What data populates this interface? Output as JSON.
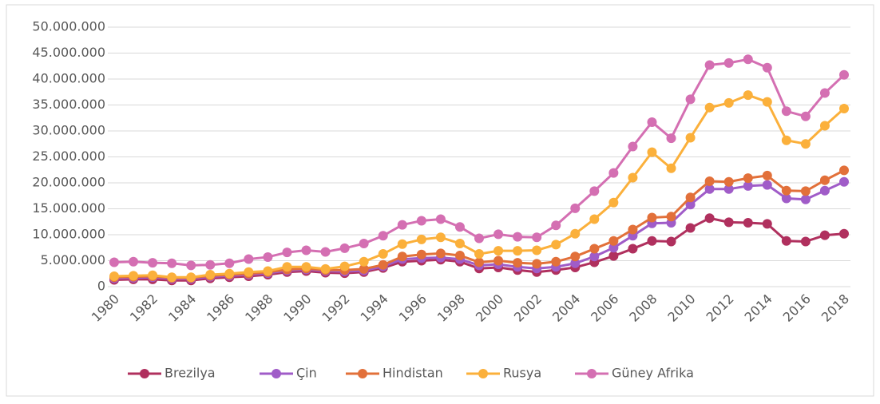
{
  "chart_data": {
    "type": "line",
    "categories": [
      "1980",
      null,
      "1982",
      null,
      "1984",
      null,
      "1986",
      null,
      "1988",
      null,
      "1990",
      null,
      "1992",
      null,
      "1994",
      null,
      "1996",
      null,
      "1998",
      null,
      "2000",
      null,
      "2002",
      null,
      "2004",
      null,
      "2006",
      null,
      "2008",
      null,
      "2010",
      null,
      "2012",
      null,
      "2014",
      null,
      "2016",
      null,
      "2018"
    ],
    "series": [
      {
        "name": "Brezilya",
        "color": "#b0305e",
        "values": [
          1300000,
          1400000,
          1400000,
          1200000,
          1200000,
          1600000,
          1800000,
          2000000,
          2300000,
          2800000,
          3000000,
          2700000,
          2600000,
          2800000,
          3600000,
          4800000,
          5000000,
          5200000,
          4800000,
          3500000,
          3700000,
          3200000,
          2800000,
          3200000,
          3700000,
          4700000,
          5900000,
          7300000,
          8800000,
          8700000,
          11300000,
          13200000,
          12400000,
          12300000,
          12100000,
          8800000,
          8700000,
          9900000,
          10200000
        ]
      },
      {
        "name": "Çin",
        "color": "#a05cc8",
        "values": [
          1600000,
          1700000,
          1800000,
          1500000,
          1500000,
          1900000,
          2100000,
          2300000,
          2600000,
          3100000,
          3300000,
          3000000,
          2900000,
          3100000,
          3900000,
          5300000,
          5500000,
          5600000,
          5300000,
          4100000,
          4300000,
          3800000,
          3500000,
          3800000,
          4500000,
          5800000,
          7500000,
          9800000,
          12200000,
          12300000,
          15800000,
          18800000,
          18800000,
          19400000,
          19600000,
          17000000,
          16800000,
          18500000,
          20200000
        ]
      },
      {
        "name": "Hindistan",
        "color": "#e2703a",
        "values": [
          1800000,
          1900000,
          2000000,
          1700000,
          1700000,
          2100000,
          2300000,
          2500000,
          2800000,
          3300000,
          3500000,
          3200000,
          3200000,
          3400000,
          4200000,
          5800000,
          6200000,
          6400000,
          6000000,
          4700000,
          5000000,
          4600000,
          4400000,
          4800000,
          5800000,
          7300000,
          8800000,
          11000000,
          13300000,
          13500000,
          17200000,
          20300000,
          20200000,
          20900000,
          21400000,
          18500000,
          18400000,
          20500000,
          22400000
        ]
      },
      {
        "name": "Rusya",
        "color": "#fbb03b",
        "values": [
          2000000,
          2100000,
          2200000,
          1800000,
          1800000,
          2300000,
          2500000,
          2800000,
          3000000,
          3800000,
          3800000,
          3400000,
          3900000,
          4800000,
          6300000,
          8200000,
          9100000,
          9500000,
          8300000,
          6300000,
          6900000,
          6900000,
          7000000,
          8100000,
          10200000,
          13000000,
          16200000,
          21000000,
          25900000,
          22800000,
          28700000,
          34500000,
          35400000,
          36900000,
          35600000,
          28200000,
          27500000,
          31000000,
          34300000
        ]
      },
      {
        "name": "Güney Afrika",
        "color": "#d46fb2",
        "values": [
          4700000,
          4800000,
          4600000,
          4500000,
          4100000,
          4200000,
          4500000,
          5300000,
          5700000,
          6600000,
          7000000,
          6700000,
          7400000,
          8300000,
          9800000,
          11900000,
          12700000,
          13000000,
          11500000,
          9300000,
          10100000,
          9600000,
          9500000,
          11800000,
          15100000,
          18400000,
          21900000,
          27000000,
          31700000,
          28600000,
          36100000,
          42700000,
          43100000,
          43800000,
          42200000,
          33800000,
          32800000,
          37300000,
          40800000
        ]
      }
    ],
    "ylim": [
      0,
      50000000
    ],
    "yticks": [
      {
        "value": 0,
        "label": "0"
      },
      {
        "value": 5000000,
        "label": "5.000.000"
      },
      {
        "value": 10000000,
        "label": "10.000.000"
      },
      {
        "value": 15000000,
        "label": "15.000.000"
      },
      {
        "value": 20000000,
        "label": "20.000.000"
      },
      {
        "value": 25000000,
        "label": "25.000.000"
      },
      {
        "value": 30000000,
        "label": "30.000.000"
      },
      {
        "value": 35000000,
        "label": "35.000.000"
      },
      {
        "value": 40000000,
        "label": "40.000.000"
      },
      {
        "value": 45000000,
        "label": "45.000.000"
      },
      {
        "value": 50000000,
        "label": "50.000.000"
      }
    ],
    "grid": true,
    "legend": "bottom"
  }
}
